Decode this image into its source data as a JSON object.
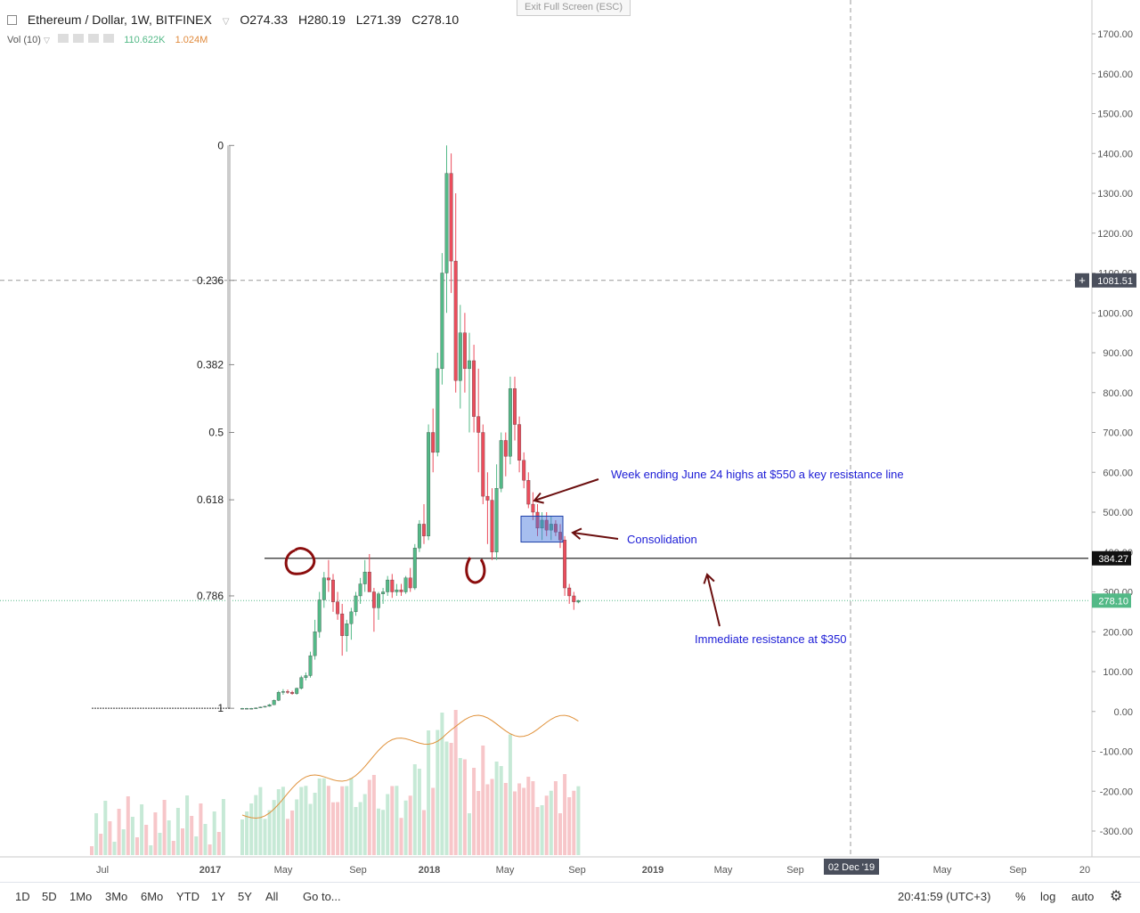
{
  "header": {
    "collapse_icon": "square-minus-icon",
    "title": "Ethereum / Dollar, 1W, BITFINEX",
    "open": "O274.33",
    "high": "H280.19",
    "low": "L271.39",
    "close": "C278.10"
  },
  "volume_legend": {
    "label": "Vol (10)",
    "value1": "110.622K",
    "value2": "1.024M"
  },
  "exit_fullscreen": "Exit Full Screen (ESC)",
  "annotations": {
    "week_high": "Week ending June 24 highs at $550 a key resistance line",
    "consolidation": "Consolidation",
    "resistance": "Immediate resistance at $350"
  },
  "price_tags": {
    "hline_1081": "1081.51",
    "level_384": "384.27",
    "last": "278.10",
    "date_cursor": "02 Dec '19"
  },
  "bottom_bar": {
    "ranges": [
      "1D",
      "5D",
      "1Mo",
      "3Mo",
      "6Mo",
      "YTD",
      "1Y",
      "5Y",
      "All"
    ],
    "goto": "Go to...",
    "time": "20:41:59 (UTC+3)",
    "percent": "%",
    "log": "log",
    "auto": "auto"
  },
  "colors": {
    "up": "#53b987",
    "down": "#eb4d5c",
    "up_vol": "#c6e9d6",
    "down_vol": "#f7c6c9",
    "annotation": "#1c1cd6",
    "arrow": "#6b0f0f"
  },
  "chart_data": {
    "type": "candlestick",
    "y_axis": {
      "min": -350,
      "max": 1750,
      "ticks": [
        -300,
        -200,
        -100,
        0,
        100,
        200,
        300,
        400,
        500,
        600,
        700,
        800,
        900,
        1000,
        1100,
        1200,
        1300,
        1400,
        1500,
        1600,
        1700
      ],
      "tick_labels": [
        "-300.00",
        "-200.00",
        "-100.00",
        "0.00",
        "100.00",
        "200.00",
        "300.00",
        "400.00",
        "500.00",
        "600.00",
        "700.00",
        "800.00",
        "900.00",
        "1000.00",
        "1100.00",
        "1200.00",
        "1300.00",
        "1400.00",
        "1500.00",
        "1600.00",
        "1700.00"
      ]
    },
    "x_axis": {
      "labels": [
        "Jul",
        "2017",
        "May",
        "Sep",
        "2018",
        "May",
        "Sep",
        "2019",
        "May",
        "Sep",
        "02 Dec '19",
        "May",
        "Sep",
        "20"
      ]
    },
    "fibonacci": {
      "levels": [
        "0",
        "0.236",
        "0.382",
        "0.5",
        "0.618",
        "0.786",
        "1"
      ],
      "prices": [
        1420,
        1081.51,
        870,
        700,
        531,
        290,
        8
      ]
    },
    "horizontal_lines": [
      1081.51,
      384.27
    ],
    "last_price": 278.1,
    "candles": [
      {
        "o": 8,
        "h": 9,
        "l": 7,
        "c": 8
      },
      {
        "o": 8,
        "h": 9,
        "l": 7,
        "c": 8
      },
      {
        "o": 8,
        "h": 9,
        "l": 7,
        "c": 8
      },
      {
        "o": 8,
        "h": 10,
        "l": 7,
        "c": 9
      },
      {
        "o": 10,
        "h": 12,
        "l": 9,
        "c": 11
      },
      {
        "o": 11,
        "h": 14,
        "l": 10,
        "c": 13
      },
      {
        "o": 13,
        "h": 19,
        "l": 12,
        "c": 17
      },
      {
        "o": 17,
        "h": 30,
        "l": 16,
        "c": 28
      },
      {
        "o": 28,
        "h": 52,
        "l": 26,
        "c": 48
      },
      {
        "o": 48,
        "h": 56,
        "l": 42,
        "c": 50
      },
      {
        "o": 50,
        "h": 55,
        "l": 44,
        "c": 48
      },
      {
        "o": 48,
        "h": 52,
        "l": 42,
        "c": 45
      },
      {
        "o": 45,
        "h": 60,
        "l": 42,
        "c": 58
      },
      {
        "o": 58,
        "h": 90,
        "l": 55,
        "c": 85
      },
      {
        "o": 85,
        "h": 98,
        "l": 78,
        "c": 90
      },
      {
        "o": 90,
        "h": 150,
        "l": 85,
        "c": 140
      },
      {
        "o": 140,
        "h": 230,
        "l": 130,
        "c": 200
      },
      {
        "o": 200,
        "h": 300,
        "l": 185,
        "c": 280
      },
      {
        "o": 280,
        "h": 350,
        "l": 260,
        "c": 335
      },
      {
        "o": 335,
        "h": 380,
        "l": 300,
        "c": 330
      },
      {
        "o": 330,
        "h": 345,
        "l": 250,
        "c": 275
      },
      {
        "o": 275,
        "h": 300,
        "l": 230,
        "c": 245
      },
      {
        "o": 245,
        "h": 270,
        "l": 140,
        "c": 190
      },
      {
        "o": 190,
        "h": 230,
        "l": 150,
        "c": 220
      },
      {
        "o": 220,
        "h": 260,
        "l": 180,
        "c": 250
      },
      {
        "o": 250,
        "h": 300,
        "l": 240,
        "c": 290
      },
      {
        "o": 290,
        "h": 335,
        "l": 270,
        "c": 320
      },
      {
        "o": 320,
        "h": 380,
        "l": 300,
        "c": 350
      },
      {
        "o": 350,
        "h": 395,
        "l": 300,
        "c": 300
      },
      {
        "o": 300,
        "h": 310,
        "l": 200,
        "c": 260
      },
      {
        "o": 260,
        "h": 300,
        "l": 230,
        "c": 295
      },
      {
        "o": 295,
        "h": 310,
        "l": 270,
        "c": 300
      },
      {
        "o": 300,
        "h": 340,
        "l": 290,
        "c": 330
      },
      {
        "o": 330,
        "h": 345,
        "l": 285,
        "c": 300
      },
      {
        "o": 300,
        "h": 320,
        "l": 290,
        "c": 305
      },
      {
        "o": 305,
        "h": 320,
        "l": 290,
        "c": 300
      },
      {
        "o": 300,
        "h": 340,
        "l": 295,
        "c": 335
      },
      {
        "o": 335,
        "h": 360,
        "l": 300,
        "c": 310
      },
      {
        "o": 310,
        "h": 420,
        "l": 305,
        "c": 410
      },
      {
        "o": 410,
        "h": 480,
        "l": 400,
        "c": 470
      },
      {
        "o": 470,
        "h": 520,
        "l": 420,
        "c": 440
      },
      {
        "o": 440,
        "h": 720,
        "l": 430,
        "c": 700
      },
      {
        "o": 700,
        "h": 760,
        "l": 600,
        "c": 650
      },
      {
        "o": 650,
        "h": 900,
        "l": 640,
        "c": 860
      },
      {
        "o": 860,
        "h": 1150,
        "l": 820,
        "c": 1100
      },
      {
        "o": 1100,
        "h": 1420,
        "l": 1000,
        "c": 1350
      },
      {
        "o": 1350,
        "h": 1400,
        "l": 1050,
        "c": 1130
      },
      {
        "o": 1130,
        "h": 1300,
        "l": 800,
        "c": 830
      },
      {
        "o": 830,
        "h": 1020,
        "l": 760,
        "c": 950
      },
      {
        "o": 950,
        "h": 1000,
        "l": 800,
        "c": 860
      },
      {
        "o": 860,
        "h": 950,
        "l": 700,
        "c": 880
      },
      {
        "o": 880,
        "h": 920,
        "l": 700,
        "c": 740
      },
      {
        "o": 740,
        "h": 860,
        "l": 600,
        "c": 700
      },
      {
        "o": 700,
        "h": 720,
        "l": 520,
        "c": 540
      },
      {
        "o": 540,
        "h": 600,
        "l": 420,
        "c": 530
      },
      {
        "o": 530,
        "h": 560,
        "l": 380,
        "c": 400
      },
      {
        "o": 400,
        "h": 620,
        "l": 380,
        "c": 560
      },
      {
        "o": 560,
        "h": 700,
        "l": 550,
        "c": 680
      },
      {
        "o": 680,
        "h": 700,
        "l": 590,
        "c": 640
      },
      {
        "o": 640,
        "h": 840,
        "l": 620,
        "c": 810
      },
      {
        "o": 810,
        "h": 840,
        "l": 680,
        "c": 720
      },
      {
        "o": 720,
        "h": 740,
        "l": 600,
        "c": 630
      },
      {
        "o": 630,
        "h": 650,
        "l": 560,
        "c": 580
      },
      {
        "o": 580,
        "h": 600,
        "l": 510,
        "c": 520
      },
      {
        "o": 520,
        "h": 550,
        "l": 480,
        "c": 500
      },
      {
        "o": 500,
        "h": 520,
        "l": 440,
        "c": 460
      },
      {
        "o": 460,
        "h": 500,
        "l": 430,
        "c": 480
      },
      {
        "o": 480,
        "h": 500,
        "l": 440,
        "c": 455
      },
      {
        "o": 455,
        "h": 490,
        "l": 430,
        "c": 470
      },
      {
        "o": 470,
        "h": 480,
        "l": 440,
        "c": 450
      },
      {
        "o": 450,
        "h": 470,
        "l": 410,
        "c": 430
      },
      {
        "o": 430,
        "h": 440,
        "l": 290,
        "c": 310
      },
      {
        "o": 310,
        "h": 320,
        "l": 270,
        "c": 290
      },
      {
        "o": 290,
        "h": 300,
        "l": 255,
        "c": 275
      },
      {
        "o": 274.33,
        "h": 280.19,
        "l": 271.39,
        "c": 278.1
      }
    ],
    "volume_moving_average": "Vol (10)"
  }
}
